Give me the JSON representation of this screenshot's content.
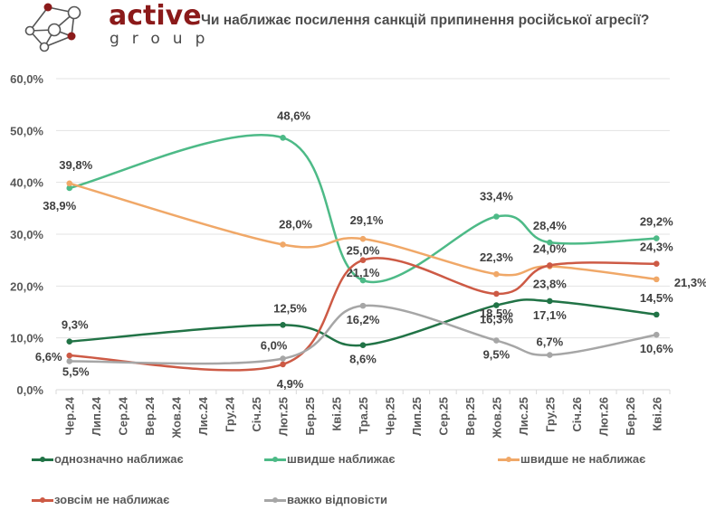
{
  "brand": {
    "name": "active",
    "subname": "group",
    "color": "#8b1a1a"
  },
  "chart_data": {
    "type": "line",
    "title": "Чи наближає посилення санкцій припинення російської агресії?",
    "xlabel": "",
    "ylabel": "",
    "ylim": [
      0,
      60
    ],
    "yticks": [
      "0,0%",
      "10,0%",
      "20,0%",
      "30,0%",
      "40,0%",
      "50,0%",
      "60,0%"
    ],
    "grid": true,
    "legend_position": "bottom",
    "categories": [
      "Чер.24",
      "Лип.24",
      "Сер.24",
      "Вер.24",
      "Жов.24",
      "Лис.24",
      "Гру.24",
      "Січ.25",
      "Лют.25",
      "Бер.25",
      "Кві.25",
      "Тра.25",
      "Чер.25",
      "Лип.25",
      "Сер.25",
      "Вер.25",
      "Жов.25",
      "Лис.25",
      "Гру.25",
      "Січ.26",
      "Лют.26",
      "Бер.26",
      "Кві.26"
    ],
    "point_categories": [
      "Чер.24",
      "Лют.25",
      "Тра.25",
      "Жов.25",
      "Гру.25",
      "Кві.26"
    ],
    "series": [
      {
        "name": "однозначно наближає",
        "color": "#217346",
        "values": [
          9.3,
          12.5,
          8.6,
          16.3,
          17.1,
          14.5
        ],
        "labels": [
          "9,3%",
          "12,5%",
          "8,6%",
          "16,3%",
          "17,1%",
          "14,5%"
        ]
      },
      {
        "name": "швидше наближає",
        "color": "#4dba87",
        "values": [
          38.9,
          48.6,
          21.1,
          33.4,
          28.4,
          29.2
        ],
        "labels": [
          "38,9%",
          "48,6%",
          "21,1%",
          "33,4%",
          "28,4%",
          "29,2%"
        ]
      },
      {
        "name": "швидше не наближає",
        "color": "#f0a868",
        "values": [
          39.8,
          28.0,
          29.1,
          22.3,
          23.8,
          21.3
        ],
        "labels": [
          "39,8%",
          "28,0%",
          "29,1%",
          "22,3%",
          "23,8%",
          "21,3%"
        ]
      },
      {
        "name": "зовсім не наближає",
        "color": "#cd5a45",
        "values": [
          6.6,
          4.9,
          25.0,
          18.5,
          24.0,
          24.3
        ],
        "labels": [
          "6,6%",
          "4,9%",
          "25,0%",
          "18,5%",
          "24,0%",
          "24,3%"
        ]
      },
      {
        "name": "важко відповісти",
        "color": "#a6a6a6",
        "values": [
          5.5,
          6.0,
          16.2,
          9.5,
          6.7,
          10.6
        ],
        "labels": [
          "5,5%",
          "6,0%",
          "16,2%",
          "9,5%",
          "6,7%",
          "10,6%"
        ]
      }
    ]
  }
}
